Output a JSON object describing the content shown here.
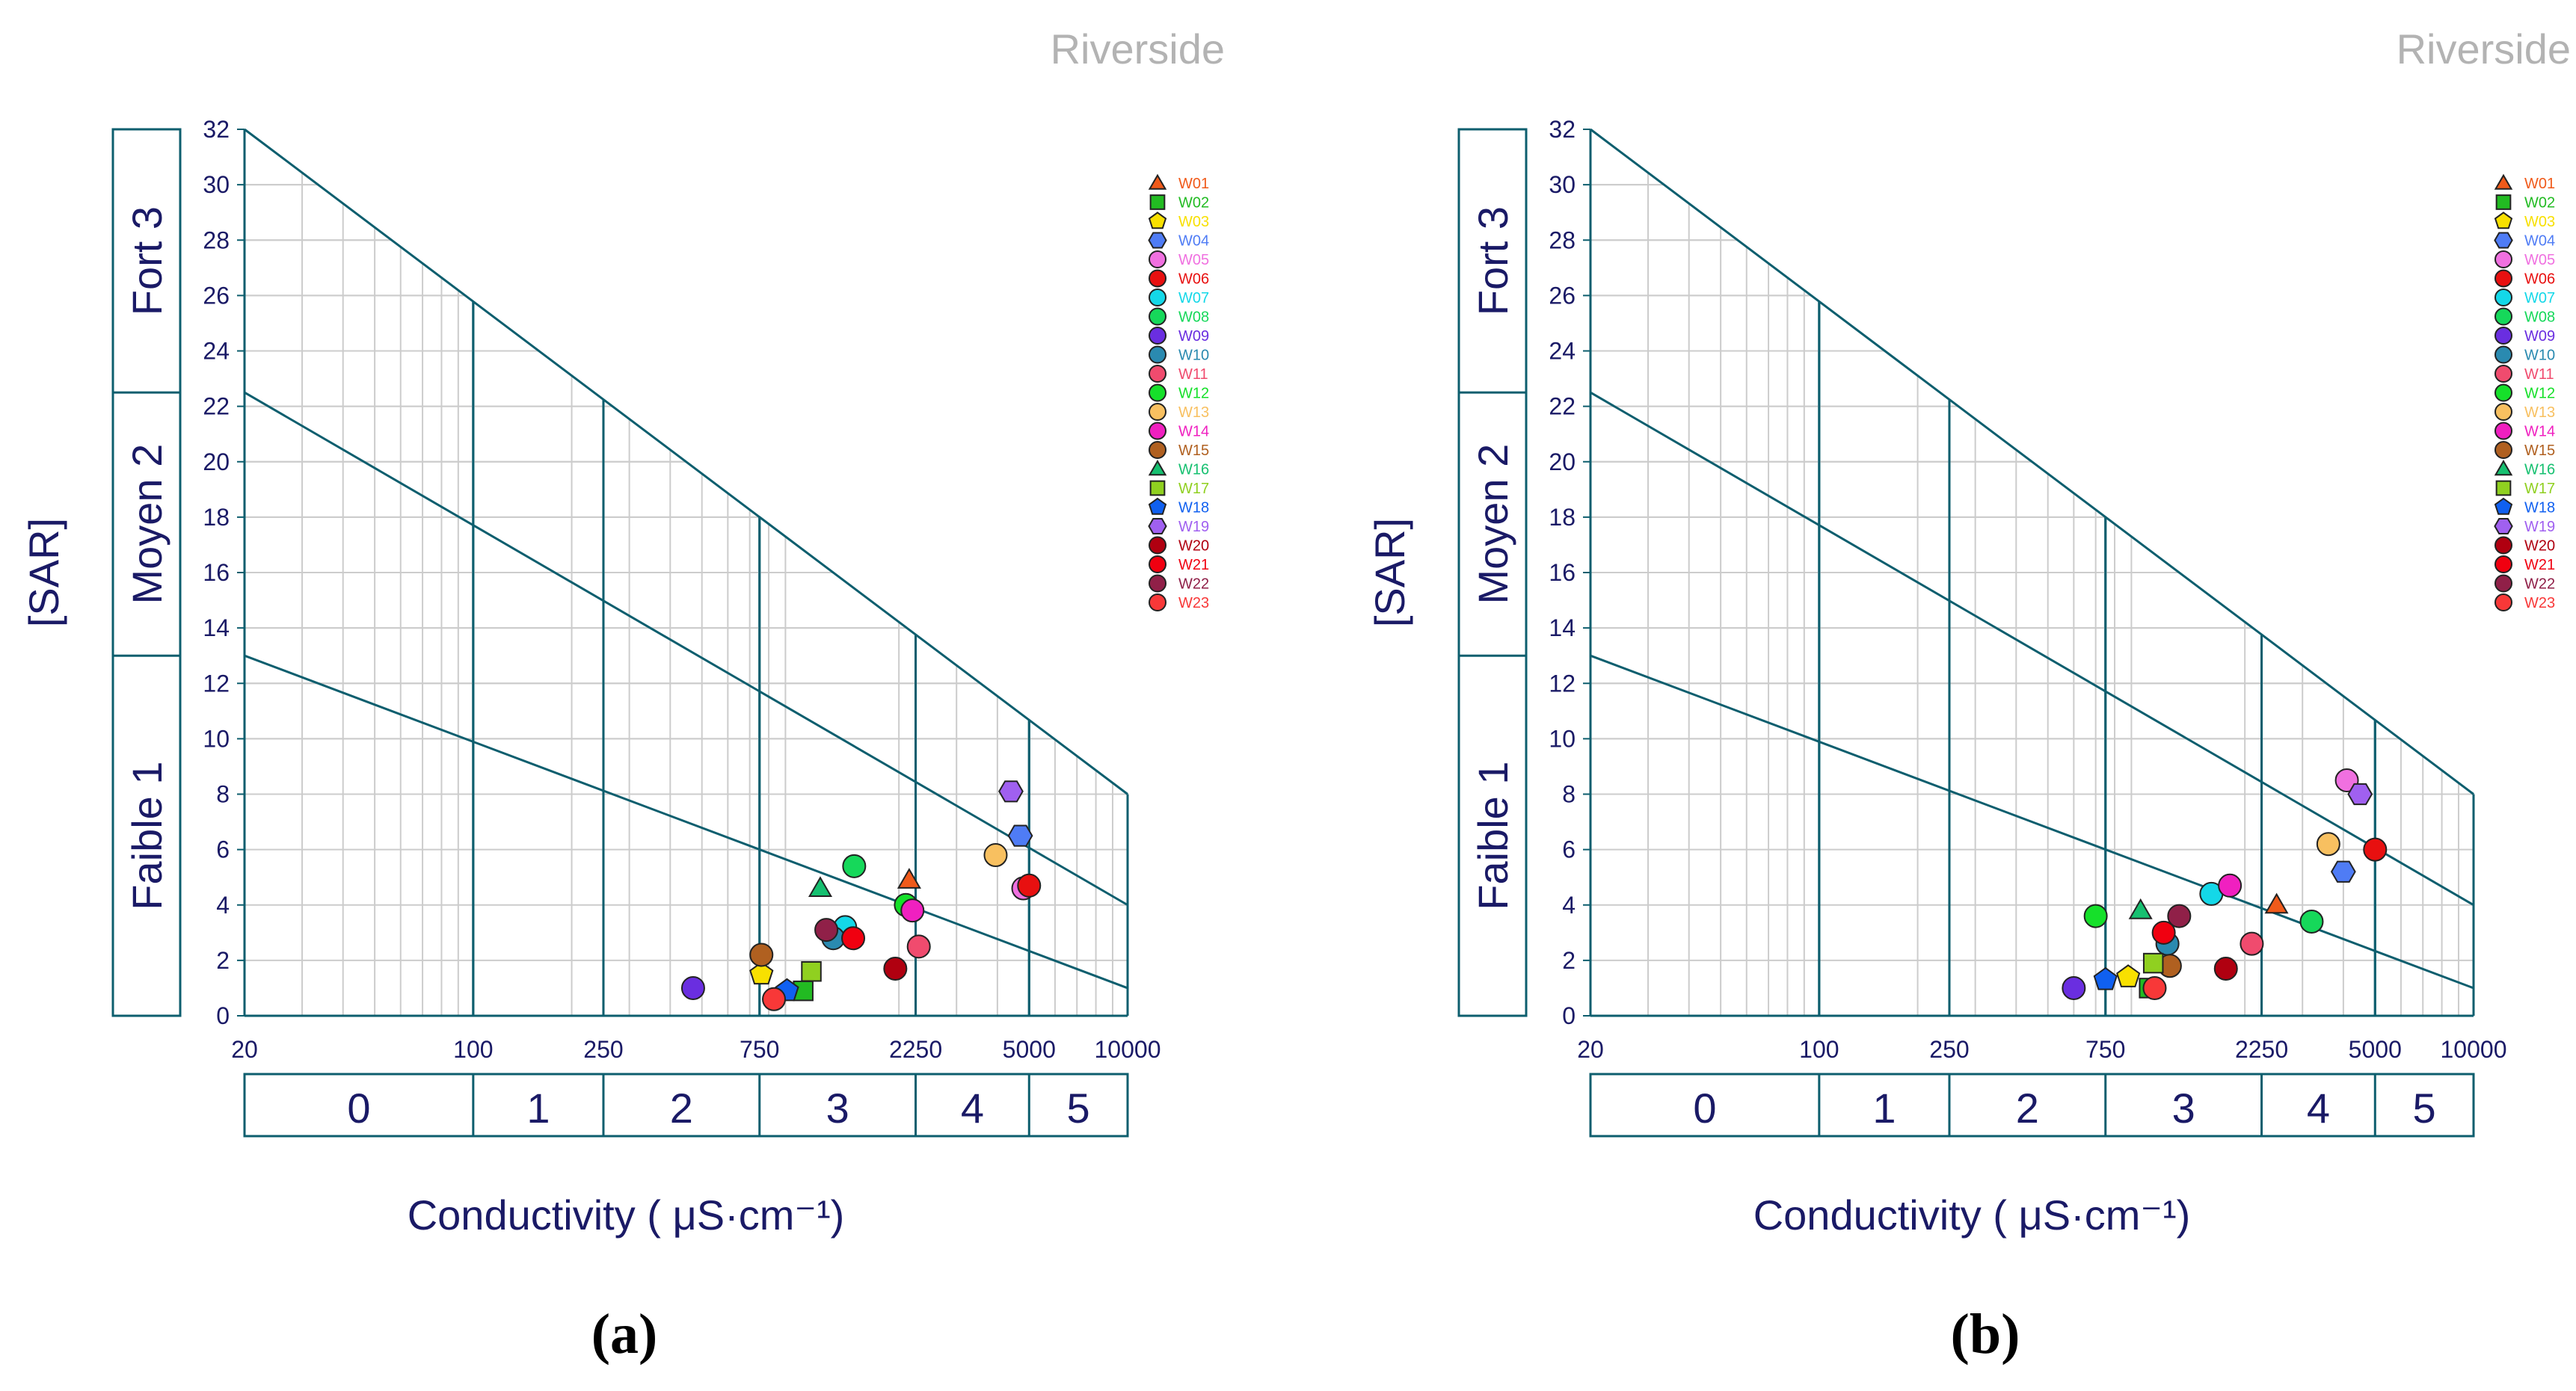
{
  "figure": {
    "panel_labels": [
      "(a)",
      "(b)"
    ]
  },
  "colors": {
    "axis": "#0d5e6e",
    "grid": "#cccccc",
    "text": "#1a1a66",
    "site_label": "#b3b3b3"
  },
  "chart_data": [
    {
      "type": "scatter",
      "panel": "(a)",
      "site_label": "Riverside",
      "ylabel": "[SAR]",
      "xlabel": "Conductivity ( μS·cm⁻¹)",
      "xscale": "log",
      "xlim": [
        20,
        10000
      ],
      "ylim": [
        0,
        32
      ],
      "x_ticks": [
        "20",
        "100",
        "250",
        "750",
        "2250",
        "5000",
        "10000"
      ],
      "x_tick_values": [
        20,
        100,
        250,
        750,
        2250,
        5000,
        10000
      ],
      "y_ticks": [
        0,
        2,
        4,
        6,
        8,
        10,
        12,
        14,
        16,
        18,
        20,
        22,
        24,
        26,
        28,
        30,
        32
      ],
      "grid": true,
      "legend_position": "top-right",
      "salinity_classes": [
        {
          "label": "0",
          "from": 20,
          "to": 100
        },
        {
          "label": "1",
          "from": 100,
          "to": 250
        },
        {
          "label": "2",
          "from": 250,
          "to": 750
        },
        {
          "label": "3",
          "from": 750,
          "to": 2250
        },
        {
          "label": "4",
          "from": 2250,
          "to": 5000
        },
        {
          "label": "5",
          "from": 5000,
          "to": 10000
        }
      ],
      "sodium_classes": [
        {
          "label": "Faible 1",
          "from": 0,
          "to": 13
        },
        {
          "label": "Moyen 2",
          "from": 13,
          "to": 22.5
        },
        {
          "label": "Fort 3",
          "from": 22.5,
          "to": 32
        }
      ],
      "boundary_lines": [
        {
          "name": "low-medium",
          "from": [
            20,
            13
          ],
          "to": [
            10000,
            1
          ]
        },
        {
          "name": "medium-high",
          "from": [
            20,
            22.5
          ],
          "to": [
            10000,
            4
          ]
        },
        {
          "name": "high-very-high",
          "from": [
            20,
            32
          ],
          "to": [
            10000,
            8
          ]
        }
      ],
      "series": [
        {
          "name": "W01",
          "shape": "triangle",
          "color": "#f05a1a",
          "x": 2150,
          "y": 4.9
        },
        {
          "name": "W02",
          "shape": "square",
          "color": "#22bb22",
          "x": 1020,
          "y": 0.9
        },
        {
          "name": "W03",
          "shape": "pentagon",
          "color": "#f8e000",
          "x": 760,
          "y": 1.5
        },
        {
          "name": "W04",
          "shape": "hexagon",
          "color": "#4f7cf5",
          "x": 4700,
          "y": 6.5
        },
        {
          "name": "W05",
          "shape": "circle",
          "color": "#f070e0",
          "x": 4800,
          "y": 4.6
        },
        {
          "name": "W06",
          "shape": "circle",
          "color": "#e81010",
          "x": 5000,
          "y": 4.7
        },
        {
          "name": "W07",
          "shape": "circle",
          "color": "#14d8e8",
          "x": 1370,
          "y": 3.2
        },
        {
          "name": "W08",
          "shape": "circle",
          "color": "#16d85a",
          "x": 1460,
          "y": 5.4
        },
        {
          "name": "W09",
          "shape": "circle",
          "color": "#6a2ee0",
          "x": 470,
          "y": 1.0
        },
        {
          "name": "W10",
          "shape": "circle",
          "color": "#2a8ab0",
          "x": 1260,
          "y": 2.8
        },
        {
          "name": "W11",
          "shape": "circle",
          "color": "#f04b6e",
          "x": 2300,
          "y": 2.5
        },
        {
          "name": "W12",
          "shape": "circle",
          "color": "#16e02a",
          "x": 2100,
          "y": 4.0
        },
        {
          "name": "W13",
          "shape": "circle",
          "color": "#f8c060",
          "x": 3950,
          "y": 5.8
        },
        {
          "name": "W14",
          "shape": "circle",
          "color": "#f020c0",
          "x": 2200,
          "y": 3.8
        },
        {
          "name": "W15",
          "shape": "circle",
          "color": "#b06020",
          "x": 760,
          "y": 2.2
        },
        {
          "name": "W16",
          "shape": "triangle",
          "color": "#16c070",
          "x": 1150,
          "y": 4.6
        },
        {
          "name": "W17",
          "shape": "square",
          "color": "#90d020",
          "x": 1080,
          "y": 1.6
        },
        {
          "name": "W18",
          "shape": "pentagon",
          "color": "#1060f0",
          "x": 910,
          "y": 0.9
        },
        {
          "name": "W19",
          "shape": "hexagon",
          "color": "#a060f0",
          "x": 4400,
          "y": 8.1
        },
        {
          "name": "W20",
          "shape": "circle",
          "color": "#b00010",
          "x": 1950,
          "y": 1.7
        },
        {
          "name": "W21",
          "shape": "circle",
          "color": "#f00010",
          "x": 1450,
          "y": 2.8
        },
        {
          "name": "W22",
          "shape": "circle",
          "color": "#902048",
          "x": 1200,
          "y": 3.1
        },
        {
          "name": "W23",
          "shape": "circle",
          "color": "#f83838",
          "x": 830,
          "y": 0.6
        }
      ]
    },
    {
      "type": "scatter",
      "panel": "(b)",
      "site_label": "Riverside",
      "ylabel": "[SAR]",
      "xlabel": "Conductivity ( μS·cm⁻¹)",
      "xscale": "log",
      "xlim": [
        20,
        10000
      ],
      "ylim": [
        0,
        32
      ],
      "x_ticks": [
        "20",
        "100",
        "250",
        "750",
        "2250",
        "5000",
        "10000"
      ],
      "x_tick_values": [
        20,
        100,
        250,
        750,
        2250,
        5000,
        10000
      ],
      "y_ticks": [
        0,
        2,
        4,
        6,
        8,
        10,
        12,
        14,
        16,
        18,
        20,
        22,
        24,
        26,
        28,
        30,
        32
      ],
      "grid": true,
      "legend_position": "top-right",
      "salinity_classes": [
        {
          "label": "0",
          "from": 20,
          "to": 100
        },
        {
          "label": "1",
          "from": 100,
          "to": 250
        },
        {
          "label": "2",
          "from": 250,
          "to": 750
        },
        {
          "label": "3",
          "from": 750,
          "to": 2250
        },
        {
          "label": "4",
          "from": 2250,
          "to": 5000
        },
        {
          "label": "5",
          "from": 5000,
          "to": 10000
        }
      ],
      "sodium_classes": [
        {
          "label": "Faible 1",
          "from": 0,
          "to": 13
        },
        {
          "label": "Moyen 2",
          "from": 13,
          "to": 22.5
        },
        {
          "label": "Fort 3",
          "from": 22.5,
          "to": 32
        }
      ],
      "boundary_lines": [
        {
          "name": "low-medium",
          "from": [
            20,
            13
          ],
          "to": [
            10000,
            1
          ]
        },
        {
          "name": "medium-high",
          "from": [
            20,
            22.5
          ],
          "to": [
            10000,
            4
          ]
        },
        {
          "name": "high-very-high",
          "from": [
            20,
            32
          ],
          "to": [
            10000,
            8
          ]
        }
      ],
      "series": [
        {
          "name": "W01",
          "shape": "triangle",
          "color": "#f05a1a",
          "x": 2500,
          "y": 4.0
        },
        {
          "name": "W02",
          "shape": "square",
          "color": "#22bb22",
          "x": 1020,
          "y": 1.0
        },
        {
          "name": "W03",
          "shape": "pentagon",
          "color": "#f8e000",
          "x": 880,
          "y": 1.4
        },
        {
          "name": "W04",
          "shape": "hexagon",
          "color": "#4f7cf5",
          "x": 4000,
          "y": 5.2
        },
        {
          "name": "W05",
          "shape": "circle",
          "color": "#f070e0",
          "x": 4100,
          "y": 8.5
        },
        {
          "name": "W06",
          "shape": "circle",
          "color": "#e81010",
          "x": 5000,
          "y": 6.0
        },
        {
          "name": "W07",
          "shape": "circle",
          "color": "#14d8e8",
          "x": 1580,
          "y": 4.4
        },
        {
          "name": "W08",
          "shape": "circle",
          "color": "#16d85a",
          "x": 3200,
          "y": 3.4
        },
        {
          "name": "W09",
          "shape": "circle",
          "color": "#6a2ee0",
          "x": 600,
          "y": 1.0
        },
        {
          "name": "W10",
          "shape": "circle",
          "color": "#2a8ab0",
          "x": 1160,
          "y": 2.6
        },
        {
          "name": "W11",
          "shape": "circle",
          "color": "#f04b6e",
          "x": 2100,
          "y": 2.6
        },
        {
          "name": "W12",
          "shape": "circle",
          "color": "#16e02a",
          "x": 700,
          "y": 3.6
        },
        {
          "name": "W13",
          "shape": "circle",
          "color": "#f8c060",
          "x": 3600,
          "y": 6.2
        },
        {
          "name": "W14",
          "shape": "circle",
          "color": "#f020c0",
          "x": 1800,
          "y": 4.7
        },
        {
          "name": "W15",
          "shape": "circle",
          "color": "#b06020",
          "x": 1180,
          "y": 1.8
        },
        {
          "name": "W16",
          "shape": "triangle",
          "color": "#16c070",
          "x": 960,
          "y": 3.8
        },
        {
          "name": "W17",
          "shape": "square",
          "color": "#90d020",
          "x": 1050,
          "y": 1.9
        },
        {
          "name": "W18",
          "shape": "pentagon",
          "color": "#1060f0",
          "x": 750,
          "y": 1.3
        },
        {
          "name": "W19",
          "shape": "hexagon",
          "color": "#a060f0",
          "x": 4500,
          "y": 8.0
        },
        {
          "name": "W20",
          "shape": "circle",
          "color": "#b00010",
          "x": 1750,
          "y": 1.7
        },
        {
          "name": "W21",
          "shape": "circle",
          "color": "#f00010",
          "x": 1130,
          "y": 3.0
        },
        {
          "name": "W22",
          "shape": "circle",
          "color": "#902048",
          "x": 1260,
          "y": 3.6
        },
        {
          "name": "W23",
          "shape": "circle",
          "color": "#f83838",
          "x": 1060,
          "y": 1.0
        }
      ]
    }
  ]
}
